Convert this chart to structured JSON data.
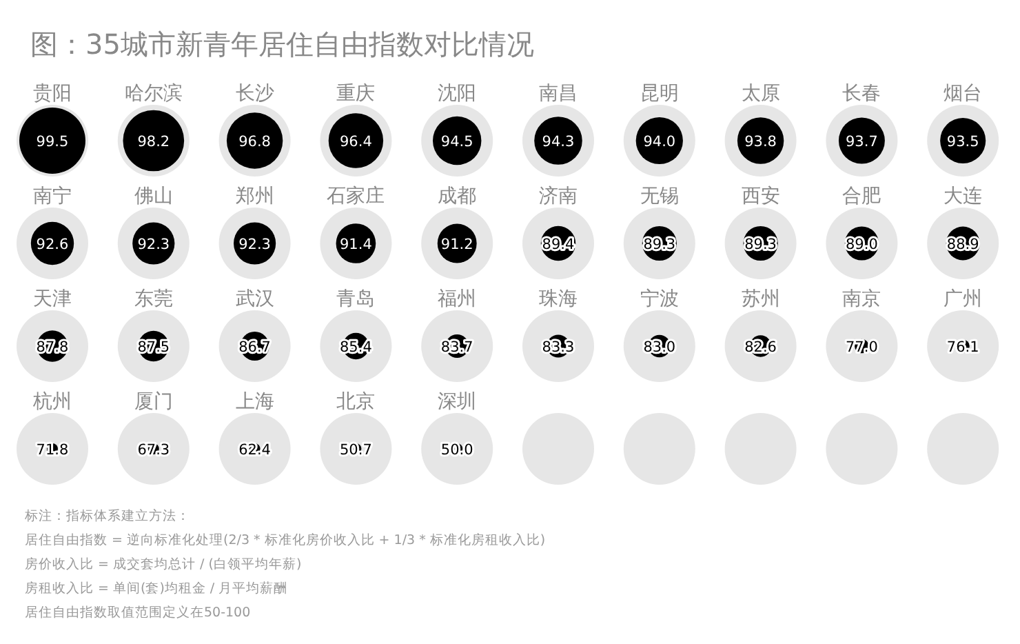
{
  "chart_data": {
    "type": "other",
    "title": "图：35城市新青年居住自由指数对比情况",
    "categories": [
      "贵阳",
      "哈尔滨",
      "长沙",
      "重庆",
      "沈阳",
      "南昌",
      "昆明",
      "太原",
      "长春",
      "烟台",
      "南宁",
      "佛山",
      "郑州",
      "石家庄",
      "成都",
      "济南",
      "无锡",
      "西安",
      "合肥",
      "大连",
      "天津",
      "东莞",
      "武汉",
      "青岛",
      "福州",
      "珠海",
      "宁波",
      "苏州",
      "南京",
      "广州",
      "杭州",
      "厦门",
      "上海",
      "北京",
      "深圳",
      null,
      null,
      null,
      null,
      null
    ],
    "values": [
      99.5,
      98.2,
      96.8,
      96.4,
      94.5,
      94.3,
      94.0,
      93.8,
      93.7,
      93.5,
      92.6,
      92.3,
      92.3,
      91.4,
      91.2,
      89.4,
      89.3,
      89.3,
      89.0,
      88.9,
      87.8,
      87.5,
      86.7,
      85.4,
      83.7,
      83.3,
      83.0,
      82.6,
      77.0,
      76.1,
      71.8,
      67.3,
      62.4,
      50.7,
      50.0,
      null,
      null,
      null,
      null,
      null
    ],
    "value_labels": [
      "99.5",
      "98.2",
      "96.8",
      "96.4",
      "94.5",
      "94.3",
      "94.0",
      "93.8",
      "93.7",
      "93.5",
      "92.6",
      "92.3",
      "92.3",
      "91.4",
      "91.2",
      "89.4",
      "89.3",
      "89.3",
      "89.0",
      "88.9",
      "87.8",
      "87.5",
      "86.7",
      "85.4",
      "83.7",
      "83.3",
      "83.0",
      "82.6",
      "77.0",
      "76.1",
      "71.8",
      "67.3",
      "62.4",
      "50.7",
      "50.0",
      null,
      null,
      null,
      null,
      null
    ],
    "color": "#000000",
    "annotations": [
      "标注：指标体系建立方法：",
      "居住自由指数 = 逆向标准化处理(2/3 * 标准化房价收入比 + 1/3 * 标准化房租收入比)",
      "房价收入比 = 成交套均总计 / (白领平均年薪)",
      "房租收入比 = 单间(套)均租金 / 月平均薪酬",
      "居住自由指数取值范围定义在50-100"
    ]
  }
}
